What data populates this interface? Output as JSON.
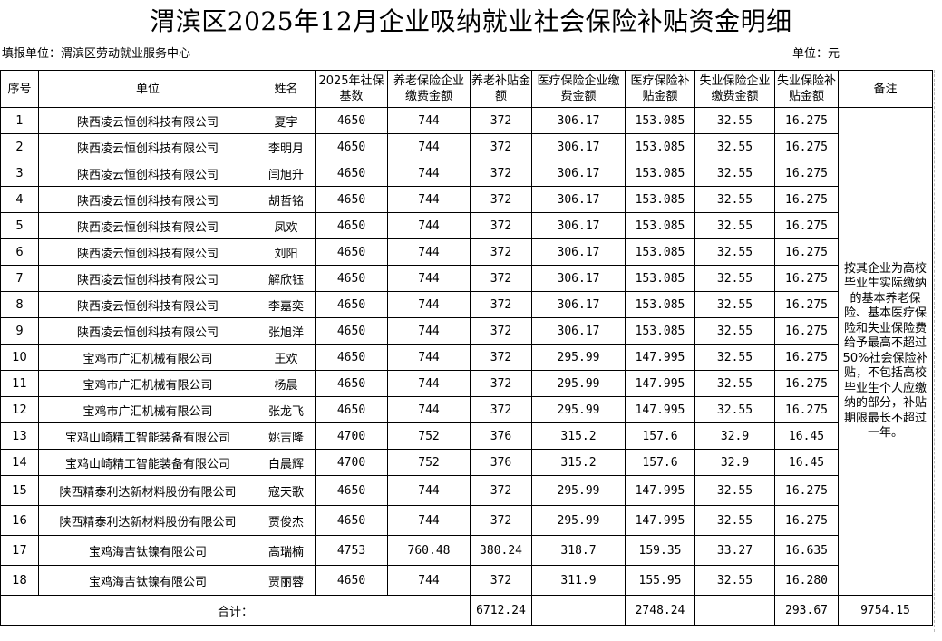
{
  "title": "渭滨区2025年12月企业吸纳就业社会保险补贴资金明细",
  "reporter_label": "填报单位：渭滨区劳动就业服务中心",
  "unit_label": "单位：元",
  "headers": {
    "seq": "序号",
    "company": "单位",
    "name": "姓名",
    "base": "2025年社保基数",
    "pension_pay": "养老保险企业缴费金额",
    "pension_sub": "养老补贴金额",
    "medical_pay": "医疗保险企业缴费金额",
    "medical_sub": "医疗保险补贴金额",
    "unemp_pay": "失业保险企业缴费金额",
    "unemp_sub": "失业保险补贴金额",
    "remark": "备注"
  },
  "rows": [
    {
      "seq": "1",
      "company": "陕西凌云恒创科技有限公司",
      "name": "夏宇",
      "base": "4650",
      "pension_pay": "744",
      "pension_sub": "372",
      "medical_pay": "306.17",
      "medical_sub": "153.085",
      "unemp_pay": "32.55",
      "unemp_sub": "16.275"
    },
    {
      "seq": "2",
      "company": "陕西凌云恒创科技有限公司",
      "name": "李明月",
      "base": "4650",
      "pension_pay": "744",
      "pension_sub": "372",
      "medical_pay": "306.17",
      "medical_sub": "153.085",
      "unemp_pay": "32.55",
      "unemp_sub": "16.275"
    },
    {
      "seq": "3",
      "company": "陕西凌云恒创科技有限公司",
      "name": "闫旭升",
      "base": "4650",
      "pension_pay": "744",
      "pension_sub": "372",
      "medical_pay": "306.17",
      "medical_sub": "153.085",
      "unemp_pay": "32.55",
      "unemp_sub": "16.275"
    },
    {
      "seq": "4",
      "company": "陕西凌云恒创科技有限公司",
      "name": "胡哲铭",
      "base": "4650",
      "pension_pay": "744",
      "pension_sub": "372",
      "medical_pay": "306.17",
      "medical_sub": "153.085",
      "unemp_pay": "32.55",
      "unemp_sub": "16.275"
    },
    {
      "seq": "5",
      "company": "陕西凌云恒创科技有限公司",
      "name": "凤欢",
      "base": "4650",
      "pension_pay": "744",
      "pension_sub": "372",
      "medical_pay": "306.17",
      "medical_sub": "153.085",
      "unemp_pay": "32.55",
      "unemp_sub": "16.275"
    },
    {
      "seq": "6",
      "company": "陕西凌云恒创科技有限公司",
      "name": "刘阳",
      "base": "4650",
      "pension_pay": "744",
      "pension_sub": "372",
      "medical_pay": "306.17",
      "medical_sub": "153.085",
      "unemp_pay": "32.55",
      "unemp_sub": "16.275"
    },
    {
      "seq": "7",
      "company": "陕西凌云恒创科技有限公司",
      "name": "解欣钰",
      "base": "4650",
      "pension_pay": "744",
      "pension_sub": "372",
      "medical_pay": "306.17",
      "medical_sub": "153.085",
      "unemp_pay": "32.55",
      "unemp_sub": "16.275"
    },
    {
      "seq": "8",
      "company": "陕西凌云恒创科技有限公司",
      "name": "李嘉奕",
      "base": "4650",
      "pension_pay": "744",
      "pension_sub": "372",
      "medical_pay": "306.17",
      "medical_sub": "153.085",
      "unemp_pay": "32.55",
      "unemp_sub": "16.275"
    },
    {
      "seq": "9",
      "company": "陕西凌云恒创科技有限公司",
      "name": "张旭洋",
      "base": "4650",
      "pension_pay": "744",
      "pension_sub": "372",
      "medical_pay": "306.17",
      "medical_sub": "153.085",
      "unemp_pay": "32.55",
      "unemp_sub": "16.275"
    },
    {
      "seq": "10",
      "company": "宝鸡市广汇机械有限公司",
      "name": "王欢",
      "base": "4650",
      "pension_pay": "744",
      "pension_sub": "372",
      "medical_pay": "295.99",
      "medical_sub": "147.995",
      "unemp_pay": "32.55",
      "unemp_sub": "16.275"
    },
    {
      "seq": "11",
      "company": "宝鸡市广汇机械有限公司",
      "name": "杨晨",
      "base": "4650",
      "pension_pay": "744",
      "pension_sub": "372",
      "medical_pay": "295.99",
      "medical_sub": "147.995",
      "unemp_pay": "32.55",
      "unemp_sub": "16.275"
    },
    {
      "seq": "12",
      "company": "宝鸡市广汇机械有限公司",
      "name": "张龙飞",
      "base": "4650",
      "pension_pay": "744",
      "pension_sub": "372",
      "medical_pay": "295.99",
      "medical_sub": "147.995",
      "unemp_pay": "32.55",
      "unemp_sub": "16.275"
    },
    {
      "seq": "13",
      "company": "宝鸡山崎精工智能装备有限公司",
      "name": "姚吉隆",
      "base": "4700",
      "pension_pay": "752",
      "pension_sub": "376",
      "medical_pay": "315.2",
      "medical_sub": "157.6",
      "unemp_pay": "32.9",
      "unemp_sub": "16.45"
    },
    {
      "seq": "14",
      "company": "宝鸡山崎精工智能装备有限公司",
      "name": "白晨辉",
      "base": "4700",
      "pension_pay": "752",
      "pension_sub": "376",
      "medical_pay": "315.2",
      "medical_sub": "157.6",
      "unemp_pay": "32.9",
      "unemp_sub": "16.45"
    },
    {
      "seq": "15",
      "company": "陕西精泰利达新材料股份有限公司",
      "name": "寇天歌",
      "base": "4650",
      "pension_pay": "744",
      "pension_sub": "372",
      "medical_pay": "295.99",
      "medical_sub": "147.995",
      "unemp_pay": "32.55",
      "unemp_sub": "16.275"
    },
    {
      "seq": "16",
      "company": "陕西精泰利达新材料股份有限公司",
      "name": "贾俊杰",
      "base": "4650",
      "pension_pay": "744",
      "pension_sub": "372",
      "medical_pay": "295.99",
      "medical_sub": "147.995",
      "unemp_pay": "32.55",
      "unemp_sub": "16.275"
    },
    {
      "seq": "17",
      "company": "宝鸡海吉钛镍有限公司",
      "name": "高瑞楠",
      "base": "4753",
      "pension_pay": "760.48",
      "pension_sub": "380.24",
      "medical_pay": "318.7",
      "medical_sub": "159.35",
      "unemp_pay": "33.27",
      "unemp_sub": "16.635"
    },
    {
      "seq": "18",
      "company": "宝鸡海吉钛镍有限公司",
      "name": "贾丽蓉",
      "base": "4650",
      "pension_pay": "744",
      "pension_sub": "372",
      "medical_pay": "311.9",
      "medical_sub": "155.95",
      "unemp_pay": "32.55",
      "unemp_sub": "16.280"
    }
  ],
  "remark_text": "按其企业为高校毕业生实际缴纳的基本养老保险、基本医疗保险和失业保险费给予最高不超过50%社会保险补贴，不包括高校毕业生个人应缴纳的部分，补贴期限最长不超过一年。",
  "total": {
    "label": "合计：",
    "pension_sub": "6712.24",
    "medical_sub": "2748.24",
    "unemp_sub": "293.67",
    "grand": "9754.15"
  }
}
